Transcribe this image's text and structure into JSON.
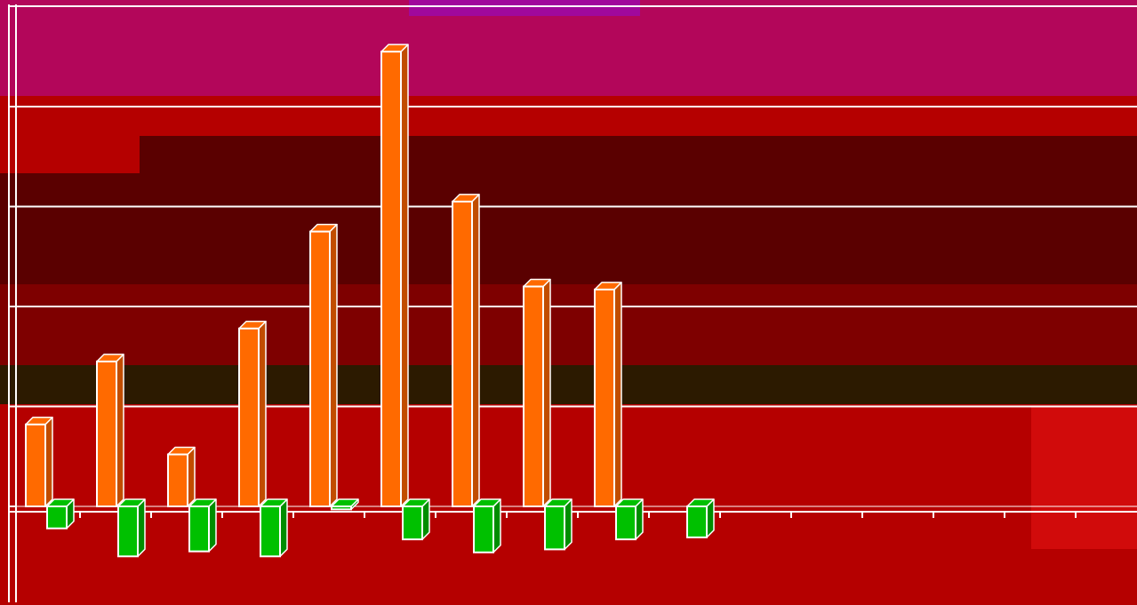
{
  "chart_data": {
    "type": "bar",
    "title": "",
    "xlabel": "",
    "ylabel": "",
    "grid": true,
    "ylim": [
      -1,
      4.5
    ],
    "categories": [
      "",
      "",
      "",
      "",
      "",
      "",
      "",
      "",
      "",
      "",
      "",
      "",
      "",
      "",
      ""
    ],
    "series": [
      {
        "color": "#ff6a00",
        "values": [
          0.82,
          1.45,
          0.52,
          1.78,
          2.75,
          4.55,
          3.05,
          2.2,
          2.17,
          null,
          null,
          null,
          null,
          null,
          null
        ]
      },
      {
        "color": "#00c000",
        "values": [
          -0.22,
          -0.5,
          -0.45,
          -0.5,
          -0.03,
          -0.33,
          -0.46,
          -0.43,
          -0.33,
          -0.31,
          null,
          null,
          null,
          null,
          null
        ]
      }
    ]
  },
  "colors": {
    "background": "#b00000",
    "grid": "#ffffff",
    "bar_side_orange": "#c14d00",
    "bar_side_green": "#008d00"
  }
}
